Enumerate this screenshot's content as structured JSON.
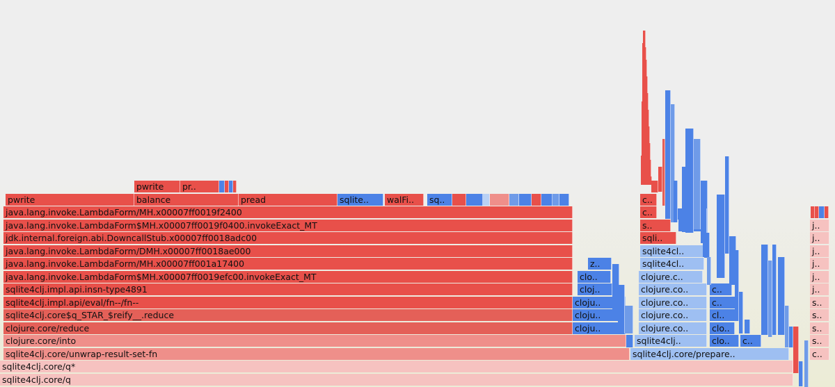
{
  "frames": [
    {
      "label": "sqlite4clj.core/q",
      "color": "pink"
    },
    {
      "label": "sqlite4clj.core/q*",
      "color": "pink"
    },
    {
      "label": "sqlite4clj.core/unwrap-result-set-fn",
      "color": "sal"
    },
    {
      "label": "sqlite4clj.core/prepare..",
      "color": "lblue"
    },
    {
      "label": "c..",
      "color": "pink"
    },
    {
      "label": "clojure.core/into",
      "color": "sal"
    },
    {
      "label": "sqlite4clj..",
      "color": "lblue"
    },
    {
      "label": "clo..",
      "color": "blue"
    },
    {
      "label": "c..",
      "color": "blue"
    },
    {
      "label": "s..",
      "color": "pink"
    },
    {
      "label": "clojure.core/reduce",
      "color": "red2"
    },
    {
      "label": "cloju..",
      "color": "blue"
    },
    {
      "label": "clojure.co..",
      "color": "lblue"
    },
    {
      "label": "clo..",
      "color": "blue"
    },
    {
      "label": "s..",
      "color": "pink"
    },
    {
      "label": "sqlite4clj.core$q_STAR_$reify__.reduce",
      "color": "red2"
    },
    {
      "label": "cloju..",
      "color": "blue"
    },
    {
      "label": "clojure.co..",
      "color": "lblue"
    },
    {
      "label": "cl..",
      "color": "blue"
    },
    {
      "label": "s..",
      "color": "pink"
    },
    {
      "label": "sqlite4clj.impl.api/eval/fn--/fn--",
      "color": "red"
    },
    {
      "label": "cloju..",
      "color": "blue"
    },
    {
      "label": "clojure.co..",
      "color": "lblue"
    },
    {
      "label": "c..",
      "color": "blue"
    },
    {
      "label": "s..",
      "color": "pink"
    },
    {
      "label": "sqlite4clj.impl.api.insn-type4891",
      "color": "red"
    },
    {
      "label": "cloj..",
      "color": "blue"
    },
    {
      "label": "clojure.co..",
      "color": "lblue"
    },
    {
      "label": "c..",
      "color": "blue"
    },
    {
      "label": "j..",
      "color": "pink"
    },
    {
      "label": "java.lang.invoke.LambdaForm$MH.x00007ff0019efc00.invokeExact_MT",
      "color": "red"
    },
    {
      "label": "clo..",
      "color": "blue"
    },
    {
      "label": "clojure.c..",
      "color": "lblue"
    },
    {
      "label": "j..",
      "color": "pink"
    },
    {
      "label": "java.lang.invoke.LambdaForm/MH.x00007ff001a17400",
      "color": "red"
    },
    {
      "label": "z..",
      "color": "blue"
    },
    {
      "label": "sqlite4cl..",
      "color": "lblue"
    },
    {
      "label": "j..",
      "color": "pink"
    },
    {
      "label": "java.lang.invoke.LambdaForm/DMH.x00007ff0018ae000",
      "color": "red"
    },
    {
      "label": "sqlite4cl..",
      "color": "lblue"
    },
    {
      "label": "j..",
      "color": "pink"
    },
    {
      "label": "jdk.internal.foreign.abi.DowncallStub.x00007ff0018adc00",
      "color": "red"
    },
    {
      "label": "sqli..",
      "color": "red"
    },
    {
      "label": "j..",
      "color": "pink"
    },
    {
      "label": "java.lang.invoke.LambdaForm$MH.x00007ff0019f0400.invokeExact_MT",
      "color": "red"
    },
    {
      "label": "s..",
      "color": "red"
    },
    {
      "label": "j..",
      "color": "pink"
    },
    {
      "label": "java.lang.invoke.LambdaForm/MH.x00007ff0019f2400",
      "color": "red"
    },
    {
      "label": "c..",
      "color": "red"
    },
    {
      "label": "pwrite",
      "color": "red"
    },
    {
      "label": "balance",
      "color": "red"
    },
    {
      "label": "pread",
      "color": "red"
    },
    {
      "label": "sqlite..",
      "color": "blue"
    },
    {
      "label": "walFi..",
      "color": "red"
    },
    {
      "label": "sq..",
      "color": "blue"
    },
    {
      "label": "c..",
      "color": "red"
    },
    {
      "label": "pwrite",
      "color": "red"
    },
    {
      "label": "pr..",
      "color": "red"
    }
  ]
}
